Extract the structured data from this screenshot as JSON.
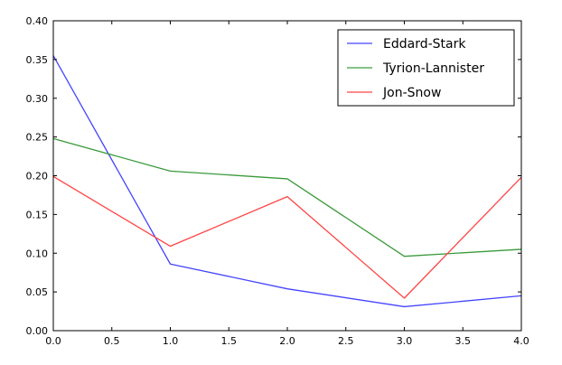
{
  "chart_data": {
    "type": "line",
    "x": [
      0,
      1,
      2,
      3,
      4
    ],
    "xlim": [
      0,
      4
    ],
    "ylim": [
      0,
      0.4
    ],
    "xticks": [
      "0.0",
      "0.5",
      "1.0",
      "1.5",
      "2.0",
      "2.5",
      "3.0",
      "3.5",
      "4.0"
    ],
    "xtick_values": [
      0,
      0.5,
      1,
      1.5,
      2,
      2.5,
      3,
      3.5,
      4
    ],
    "yticks": [
      "0.00",
      "0.05",
      "0.10",
      "0.15",
      "0.20",
      "0.25",
      "0.30",
      "0.35",
      "0.40"
    ],
    "ytick_values": [
      0,
      0.05,
      0.1,
      0.15,
      0.2,
      0.25,
      0.3,
      0.35,
      0.4
    ],
    "grid": false,
    "legend_position": "top-right",
    "series": [
      {
        "name": "Eddard-Stark",
        "color": "#4444ff",
        "values": [
          0.355,
          0.086,
          0.054,
          0.031,
          0.045
        ]
      },
      {
        "name": "Tyrion-Lannister",
        "color": "#3a9a3a",
        "values": [
          0.248,
          0.206,
          0.196,
          0.096,
          0.105
        ]
      },
      {
        "name": "Jon-Snow",
        "color": "#ff4444",
        "values": [
          0.199,
          0.109,
          0.173,
          0.042,
          0.198
        ]
      }
    ]
  }
}
